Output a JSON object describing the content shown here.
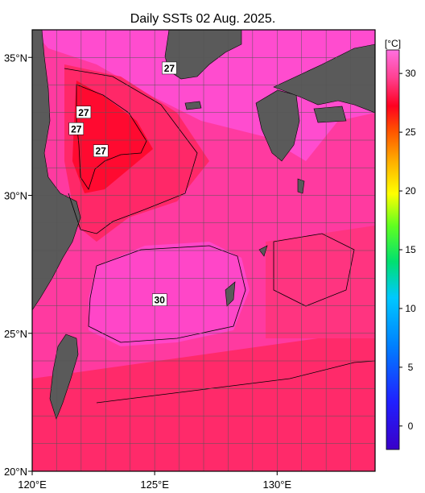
{
  "chart_data": {
    "type": "heatmap",
    "title": "Daily SSTs 02 Aug. 2025.",
    "colorbar": {
      "unit": "[°C]",
      "range": [
        -2,
        32
      ],
      "ticks": [
        0,
        5,
        10,
        15,
        20,
        25,
        30
      ]
    },
    "x_axis": {
      "range": [
        120,
        134
      ],
      "ticks": [
        120,
        125,
        130
      ],
      "tick_labels": [
        "120°E",
        "125°E",
        "130°E"
      ],
      "grid_step": 1
    },
    "y_axis": {
      "range": [
        20,
        36
      ],
      "ticks": [
        20,
        25,
        30,
        35
      ],
      "tick_labels": [
        "20°N",
        "25°N",
        "30°N",
        "35°N"
      ],
      "grid_step": 1
    },
    "grid": true,
    "contour_annotations": [
      {
        "text": "27",
        "lon": 125.6,
        "lat": 34.6
      },
      {
        "text": "27",
        "lon": 122.1,
        "lat": 33.0
      },
      {
        "text": "27",
        "lon": 121.8,
        "lat": 32.4
      },
      {
        "text": "27",
        "lon": 122.8,
        "lat": 31.6
      },
      {
        "text": "30",
        "lon": 125.2,
        "lat": 26.2
      }
    ],
    "colors": {
      "land": "#5a5a5a",
      "sea_30": "#ff40c8",
      "sea_28": "#ff2060",
      "sea_27": "#ff0030",
      "sea_29": "#ff3a90"
    }
  }
}
